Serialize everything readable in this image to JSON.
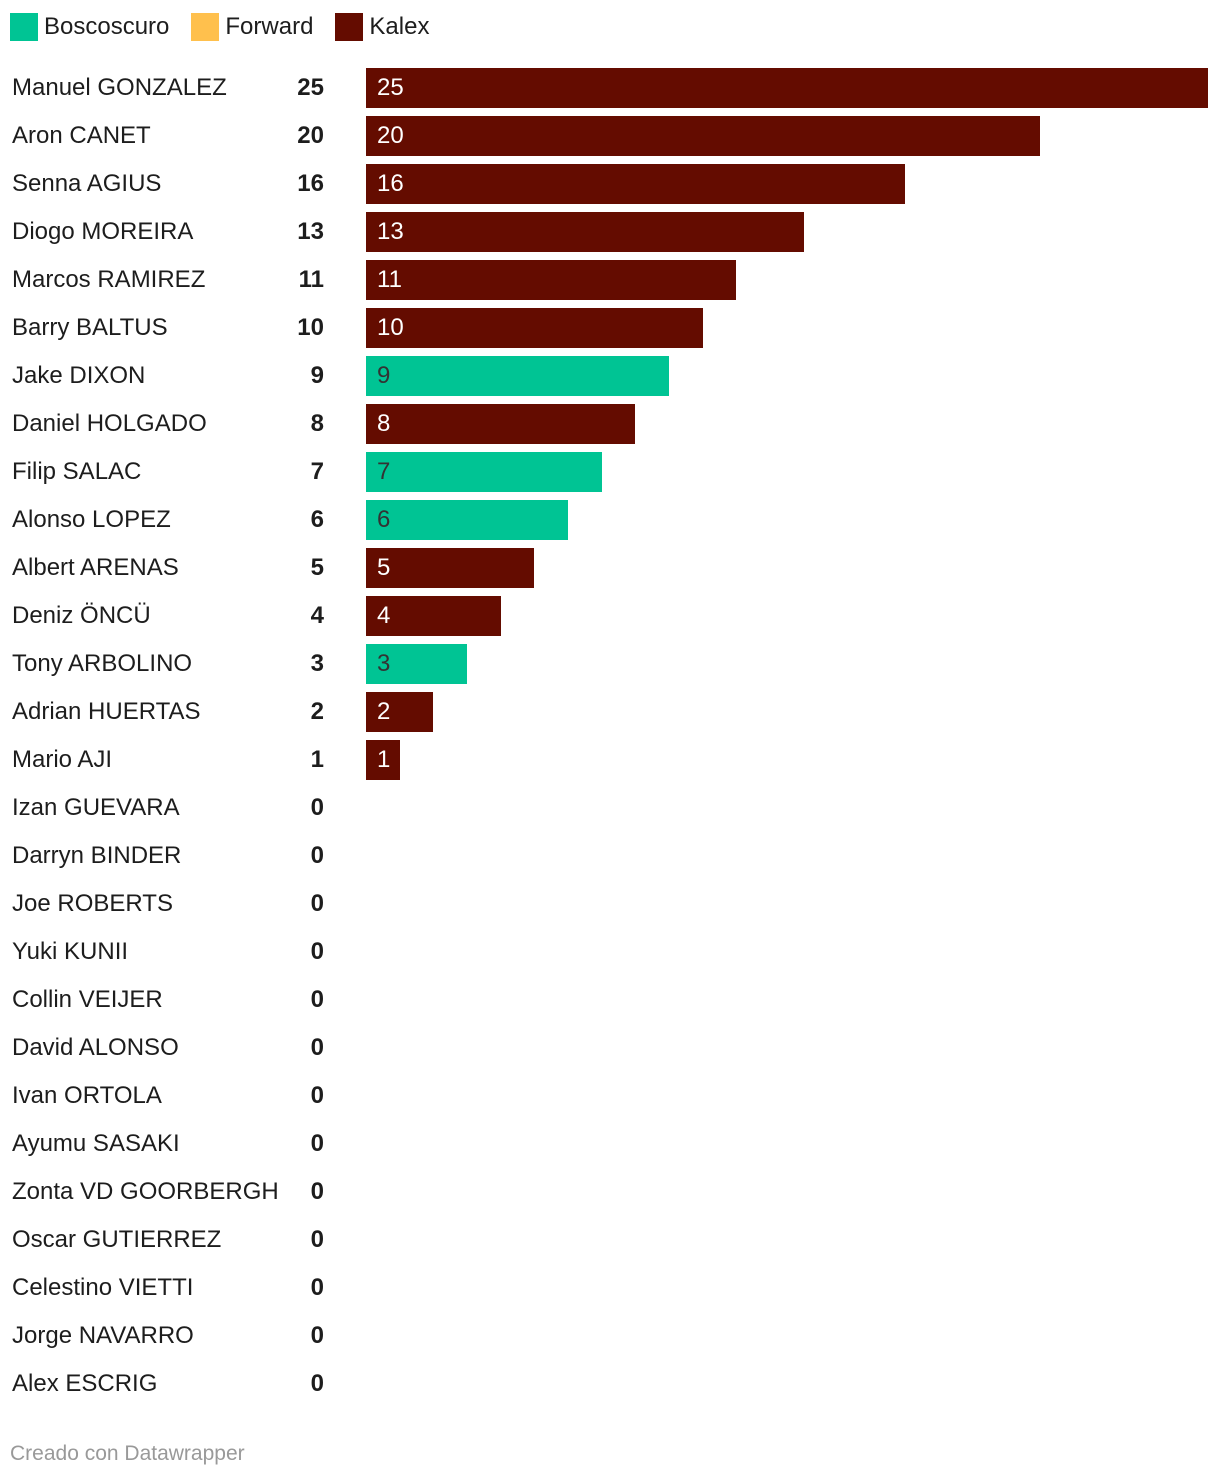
{
  "chart_data": {
    "type": "bar",
    "orientation": "horizontal",
    "legend": [
      {
        "name": "Boscoscuro",
        "color": "#00c494"
      },
      {
        "name": "Forward",
        "color": "#ffc04d"
      },
      {
        "name": "Kalex",
        "color": "#640c00"
      }
    ],
    "legend_position": "top-left",
    "xlim": [
      0,
      25
    ],
    "grid": false,
    "rows": [
      {
        "rider": "Manuel GONZALEZ",
        "value": "25",
        "team": "Kalex"
      },
      {
        "rider": "Aron CANET",
        "value": "20",
        "team": "Kalex"
      },
      {
        "rider": "Senna AGIUS",
        "value": "16",
        "team": "Kalex"
      },
      {
        "rider": "Diogo MOREIRA",
        "value": "13",
        "team": "Kalex"
      },
      {
        "rider": "Marcos RAMIREZ",
        "value": "11",
        "team": "Kalex"
      },
      {
        "rider": "Barry BALTUS",
        "value": "10",
        "team": "Kalex"
      },
      {
        "rider": "Jake DIXON",
        "value": "9",
        "team": "Boscoscuro"
      },
      {
        "rider": "Daniel HOLGADO",
        "value": "8",
        "team": "Kalex"
      },
      {
        "rider": "Filip SALAC",
        "value": "7",
        "team": "Boscoscuro"
      },
      {
        "rider": "Alonso LOPEZ",
        "value": "6",
        "team": "Boscoscuro"
      },
      {
        "rider": "Albert ARENAS",
        "value": "5",
        "team": "Kalex"
      },
      {
        "rider": "Deniz ÖNCÜ",
        "value": "4",
        "team": "Kalex"
      },
      {
        "rider": "Tony ARBOLINO",
        "value": "3",
        "team": "Boscoscuro"
      },
      {
        "rider": "Adrian HUERTAS",
        "value": "2",
        "team": "Kalex"
      },
      {
        "rider": "Mario AJI",
        "value": "1",
        "team": "Kalex"
      },
      {
        "rider": "Izan GUEVARA",
        "value": "0",
        "team": ""
      },
      {
        "rider": "Darryn BINDER",
        "value": "0",
        "team": ""
      },
      {
        "rider": "Joe ROBERTS",
        "value": "0",
        "team": ""
      },
      {
        "rider": "Yuki KUNII",
        "value": "0",
        "team": ""
      },
      {
        "rider": "Collin VEIJER",
        "value": "0",
        "team": ""
      },
      {
        "rider": "David ALONSO",
        "value": "0",
        "team": ""
      },
      {
        "rider": "Ivan ORTOLA",
        "value": "0",
        "team": ""
      },
      {
        "rider": "Ayumu SASAKI",
        "value": "0",
        "team": ""
      },
      {
        "rider": "Zonta VD GOORBERGH",
        "value": "0",
        "team": ""
      },
      {
        "rider": "Oscar GUTIERREZ",
        "value": "0",
        "team": ""
      },
      {
        "rider": "Celestino VIETTI",
        "value": "0",
        "team": ""
      },
      {
        "rider": "Jorge NAVARRO",
        "value": "0",
        "team": ""
      },
      {
        "rider": "Alex ESCRIG",
        "value": "0",
        "team": ""
      }
    ]
  },
  "footer": {
    "credit": "Creado con Datawrapper"
  },
  "colors": {
    "bar_label_on_dark": "#ffffff",
    "bar_label_on_light": "#333333"
  }
}
